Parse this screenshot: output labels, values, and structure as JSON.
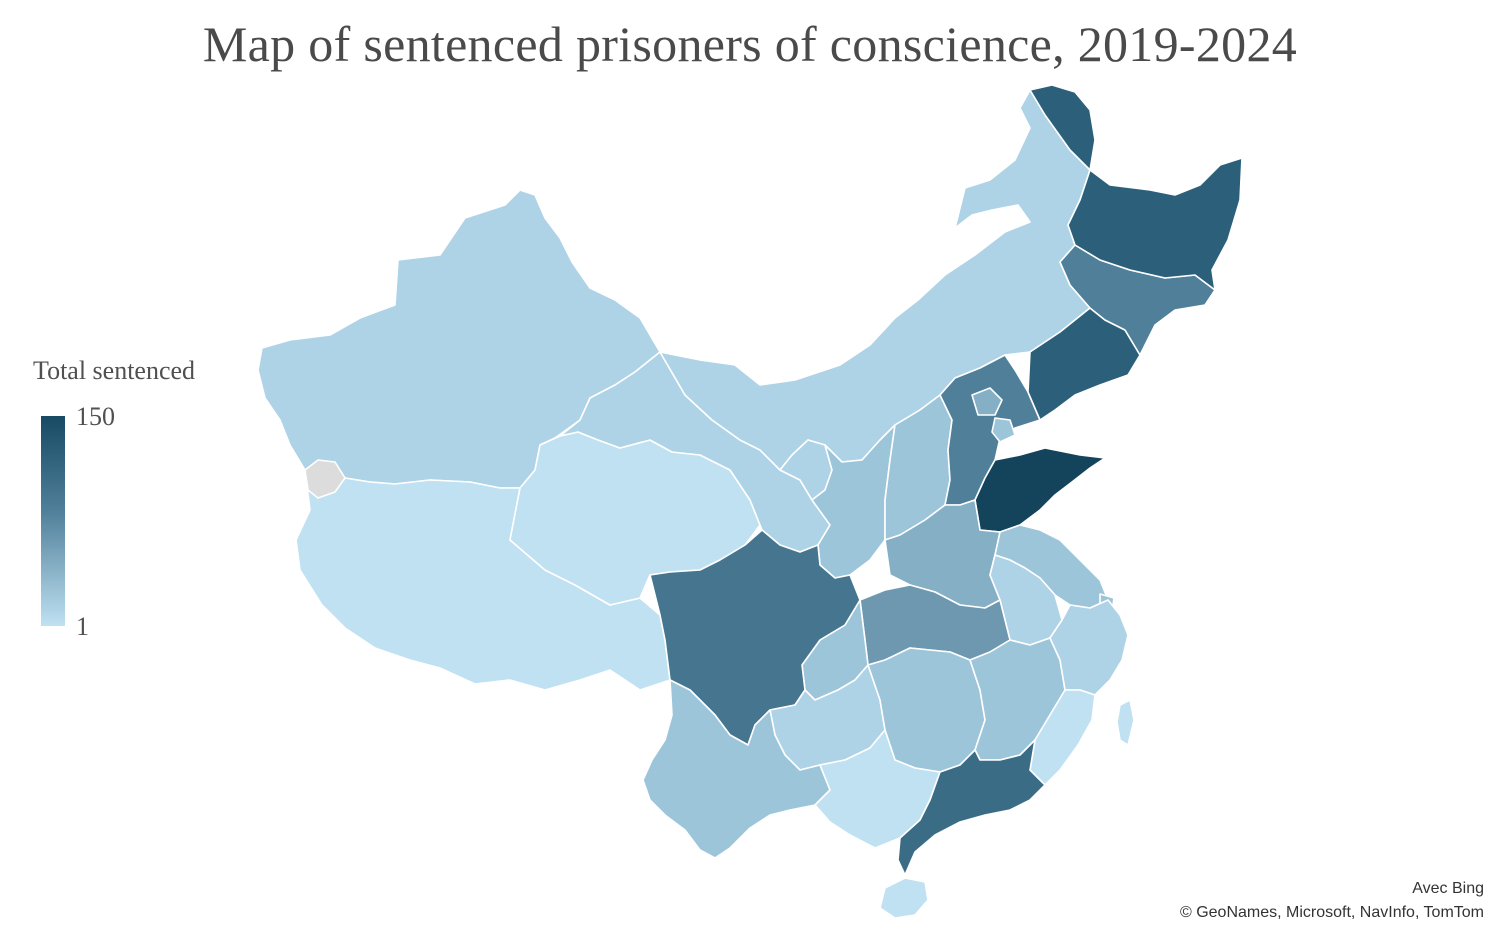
{
  "title": "Map of sentenced prisoners of conscience, 2019-2024",
  "legend": {
    "title": "Total sentenced",
    "max_label": "150",
    "min_label": "1",
    "color_max": "#184a63",
    "color_min": "#bfe1f2"
  },
  "credits": {
    "line1": "Avec Bing",
    "line2": "© GeoNames, Microsoft, NavInfo, TomTom"
  },
  "colors": {
    "no_data": "#dcdcdc",
    "lightest": "#bfe1f2",
    "light": "#aed3e6",
    "light_mid": "#9cc5da",
    "mid": "#84afc5",
    "mid_dark": "#4f7f99",
    "dark": "#2c5f7a",
    "darkest": "#14435c"
  }
}
